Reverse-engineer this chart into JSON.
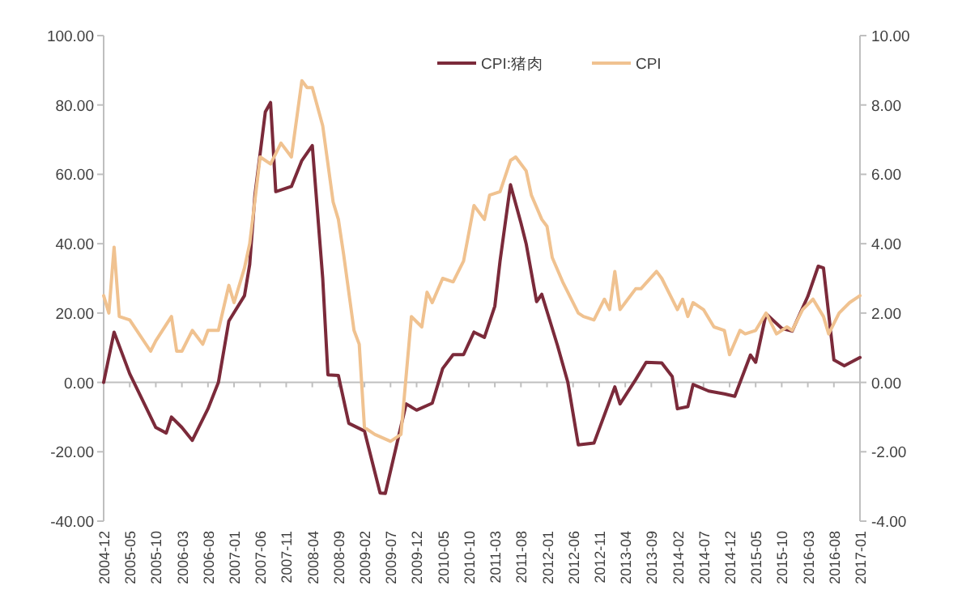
{
  "chart_data": {
    "type": "line",
    "xlim": [
      "2004-12",
      "2017-01"
    ],
    "xticks": [
      "2004-12",
      "2005-05",
      "2005-10",
      "2006-03",
      "2006-08",
      "2007-01",
      "2007-06",
      "2007-11",
      "2008-04",
      "2008-09",
      "2009-02",
      "2009-07",
      "2009-12",
      "2010-05",
      "2010-10",
      "2011-03",
      "2011-08",
      "2012-01",
      "2012-06",
      "2012-11",
      "2013-04",
      "2013-09",
      "2014-02",
      "2014-07",
      "2014-12",
      "2015-05",
      "2015-10",
      "2016-03",
      "2016-08",
      "2017-01"
    ],
    "ylim": [
      -40,
      100
    ],
    "yticks": [
      {
        "value": -40,
        "label": "-40.00"
      },
      {
        "value": -20,
        "label": "-20.00"
      },
      {
        "value": 0,
        "label": "0.00"
      },
      {
        "value": 20,
        "label": "20.00"
      },
      {
        "value": 40,
        "label": "40.00"
      },
      {
        "value": 60,
        "label": "60.00"
      },
      {
        "value": 80,
        "label": "80.00"
      },
      {
        "value": 100,
        "label": "100.00"
      }
    ],
    "y2lim": [
      -4,
      10
    ],
    "y2ticks": [
      {
        "value": -4,
        "label": "-4.00"
      },
      {
        "value": -2,
        "label": "-2.00"
      },
      {
        "value": 0,
        "label": "0.00"
      },
      {
        "value": 2,
        "label": "2.00"
      },
      {
        "value": 4,
        "label": "4.00"
      },
      {
        "value": 6,
        "label": "6.00"
      },
      {
        "value": 8,
        "label": "8.00"
      },
      {
        "value": 10,
        "label": "10.00"
      }
    ],
    "legend": "top",
    "series": [
      {
        "name": "CPI:猪肉",
        "color": "#7b2a3a",
        "x": [
          "2004-12",
          "2005-02",
          "2005-05",
          "2005-10",
          "2005-12",
          "2006-01",
          "2006-03",
          "2006-05",
          "2006-08",
          "2006-10",
          "2006-12",
          "2007-03",
          "2007-04",
          "2007-05",
          "2007-07",
          "2007-08",
          "2007-09",
          "2007-12",
          "2008-02",
          "2008-04",
          "2008-06",
          "2008-07",
          "2008-09",
          "2008-11",
          "2009-02",
          "2009-05",
          "2009-06",
          "2009-10",
          "2009-12",
          "2010-03",
          "2010-05",
          "2010-07",
          "2010-09",
          "2010-11",
          "2011-01",
          "2011-03",
          "2011-04",
          "2011-06",
          "2011-08",
          "2011-09",
          "2011-11",
          "2011-12",
          "2012-03",
          "2012-05",
          "2012-07",
          "2012-10",
          "2013-02",
          "2013-03",
          "2013-06",
          "2013-08",
          "2013-11",
          "2014-01",
          "2014-02",
          "2014-04",
          "2014-05",
          "2014-08",
          "2014-11",
          "2015-01",
          "2015-04",
          "2015-05",
          "2015-07",
          "2015-10",
          "2015-12",
          "2016-03",
          "2016-05",
          "2016-06",
          "2016-08",
          "2016-10",
          "2017-01"
        ],
        "values": [
          0,
          14.5,
          2.5,
          -13,
          -14.6,
          -10,
          -13,
          -16.7,
          -7.6,
          0,
          17.7,
          25,
          34,
          54,
          78,
          80.7,
          55,
          56.5,
          64,
          68.3,
          30,
          2.2,
          2,
          -11.8,
          -14,
          -31.9,
          -32,
          -6.2,
          -8,
          -6,
          4,
          8,
          8,
          14.5,
          13,
          22,
          35,
          57,
          46,
          40,
          23.3,
          25.4,
          10.7,
          0,
          -18,
          -17.5,
          -1.3,
          -6.2,
          0.8,
          5.8,
          5.6,
          1.7,
          -7.6,
          -7,
          -0.6,
          -2.5,
          -3.3,
          -4,
          7.9,
          5.8,
          19.8,
          15.6,
          14.8,
          24.8,
          33.5,
          33,
          6.5,
          4.8,
          7.2
        ]
      },
      {
        "name": "CPI",
        "color": "#f0c290",
        "axis": "y2",
        "x": [
          "2004-12",
          "2005-01",
          "2005-02",
          "2005-03",
          "2005-05",
          "2005-09",
          "2005-10",
          "2006-01",
          "2006-02",
          "2006-03",
          "2006-05",
          "2006-07",
          "2006-08",
          "2006-10",
          "2006-12",
          "2007-01",
          "2007-03",
          "2007-04",
          "2007-06",
          "2007-08",
          "2007-10",
          "2007-12",
          "2008-02",
          "2008-03",
          "2008-04",
          "2008-06",
          "2008-08",
          "2008-09",
          "2008-10",
          "2008-12",
          "2009-01",
          "2009-02",
          "2009-04",
          "2009-07",
          "2009-09",
          "2009-11",
          "2010-01",
          "2010-02",
          "2010-03",
          "2010-05",
          "2010-07",
          "2010-09",
          "2010-11",
          "2011-01",
          "2011-02",
          "2011-04",
          "2011-06",
          "2011-07",
          "2011-09",
          "2011-10",
          "2011-12",
          "2012-01",
          "2012-02",
          "2012-04",
          "2012-07",
          "2012-08",
          "2012-10",
          "2012-12",
          "2013-01",
          "2013-02",
          "2013-03",
          "2013-04",
          "2013-06",
          "2013-07",
          "2013-10",
          "2013-11",
          "2014-02",
          "2014-03",
          "2014-04",
          "2014-05",
          "2014-07",
          "2014-09",
          "2014-11",
          "2014-12",
          "2015-02",
          "2015-03",
          "2015-05",
          "2015-07",
          "2015-09",
          "2015-11",
          "2015-12",
          "2016-02",
          "2016-04",
          "2016-06",
          "2016-07",
          "2016-09",
          "2016-11",
          "2017-01"
        ],
        "values": [
          2.5,
          2.0,
          3.9,
          1.9,
          1.8,
          0.9,
          1.2,
          1.9,
          0.9,
          0.9,
          1.5,
          1.1,
          1.5,
          1.5,
          2.8,
          2.3,
          3.3,
          4.0,
          6.5,
          6.3,
          6.9,
          6.5,
          8.7,
          8.5,
          8.5,
          7.4,
          5.2,
          4.7,
          3.7,
          1.5,
          1.1,
          -1.3,
          -1.5,
          -1.7,
          -1.5,
          1.9,
          1.6,
          2.6,
          2.3,
          3.0,
          2.9,
          3.5,
          5.1,
          4.7,
          5.4,
          5.5,
          6.4,
          6.5,
          6.1,
          5.4,
          4.7,
          4.5,
          3.6,
          2.9,
          2.0,
          1.9,
          1.8,
          2.4,
          2.1,
          3.2,
          2.1,
          2.3,
          2.7,
          2.7,
          3.2,
          3.0,
          2.1,
          2.4,
          1.9,
          2.3,
          2.1,
          1.6,
          1.5,
          0.8,
          1.5,
          1.4,
          1.5,
          2.0,
          1.4,
          1.6,
          1.5,
          2.1,
          2.4,
          1.9,
          1.4,
          2.0,
          2.3,
          2.5
        ]
      }
    ]
  }
}
